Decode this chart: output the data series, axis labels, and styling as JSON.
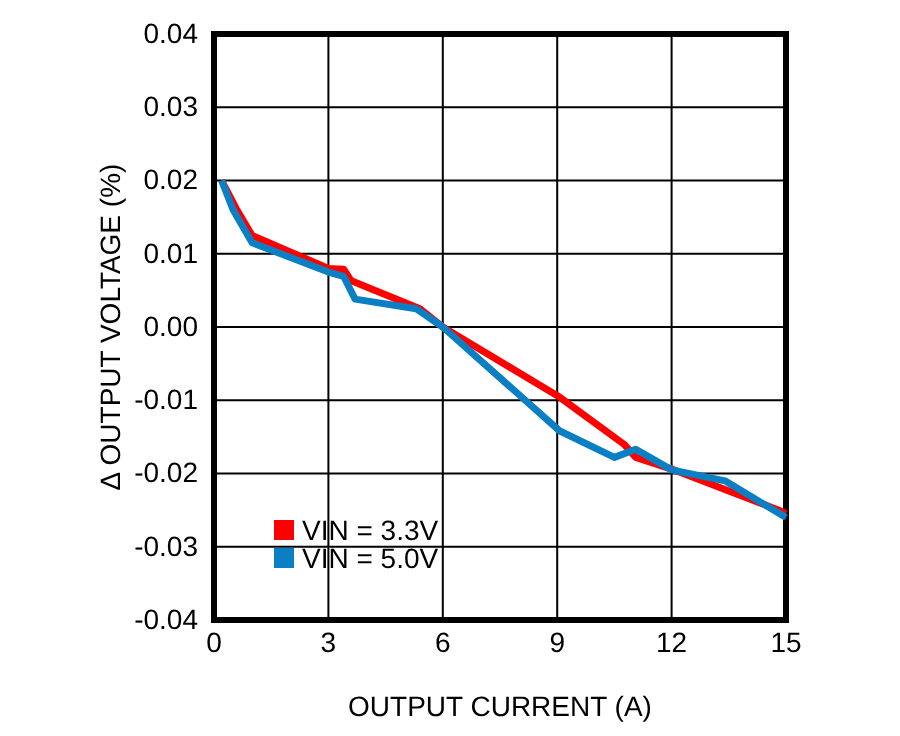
{
  "chart_data": {
    "type": "line",
    "xlabel": "OUTPUT CURRENT (A)",
    "ylabel": "Δ OUTPUT VOLTAGE (%)",
    "xlim": [
      0,
      15
    ],
    "xticks": [
      0,
      3,
      6,
      9,
      12,
      15
    ],
    "ylim": [
      -0.04,
      0.04
    ],
    "yticks": [
      {
        "value": -0.04,
        "label": "-0.04"
      },
      {
        "value": -0.03,
        "label": "-0.03"
      },
      {
        "value": -0.02,
        "label": "-0.02"
      },
      {
        "value": -0.01,
        "label": "-0.01"
      },
      {
        "value": 0,
        "label": "0.00"
      },
      {
        "value": 0.01,
        "label": "0.01"
      },
      {
        "value": 0.02,
        "label": "0.02"
      },
      {
        "value": 0.03,
        "label": "0.03"
      },
      {
        "value": 0.04,
        "label": "0.04"
      }
    ],
    "grid": true,
    "legend": "bottom left",
    "line_style": "solid",
    "series": [
      {
        "name": "VIN = 3.3V",
        "color": "#ff0000",
        "x": [
          0.2,
          0.6,
          1,
          3,
          3.4,
          3.6,
          5.4,
          6,
          9.07,
          10.75,
          11.06,
          12,
          14.85,
          15
        ],
        "values": [
          0.02,
          0.016,
          0.0125,
          0.008,
          0.0079,
          0.0063,
          0.0025,
          0,
          -0.0096,
          -0.016,
          -0.0178,
          -0.0194,
          -0.0251,
          -0.0255
        ]
      },
      {
        "name": "VIN = 5.0V",
        "color": "#0a7fc4",
        "x": [
          0.2,
          0.5,
          1,
          3,
          3.4,
          3.7,
          5.3,
          6,
          9.07,
          10.5,
          11.06,
          12,
          13.4,
          15
        ],
        "values": [
          0.02,
          0.016,
          0.0115,
          0.0075,
          0.0069,
          0.0038,
          0.0025,
          0,
          -0.0142,
          -0.0178,
          -0.0167,
          -0.0195,
          -0.021,
          -0.026
        ]
      }
    ]
  }
}
